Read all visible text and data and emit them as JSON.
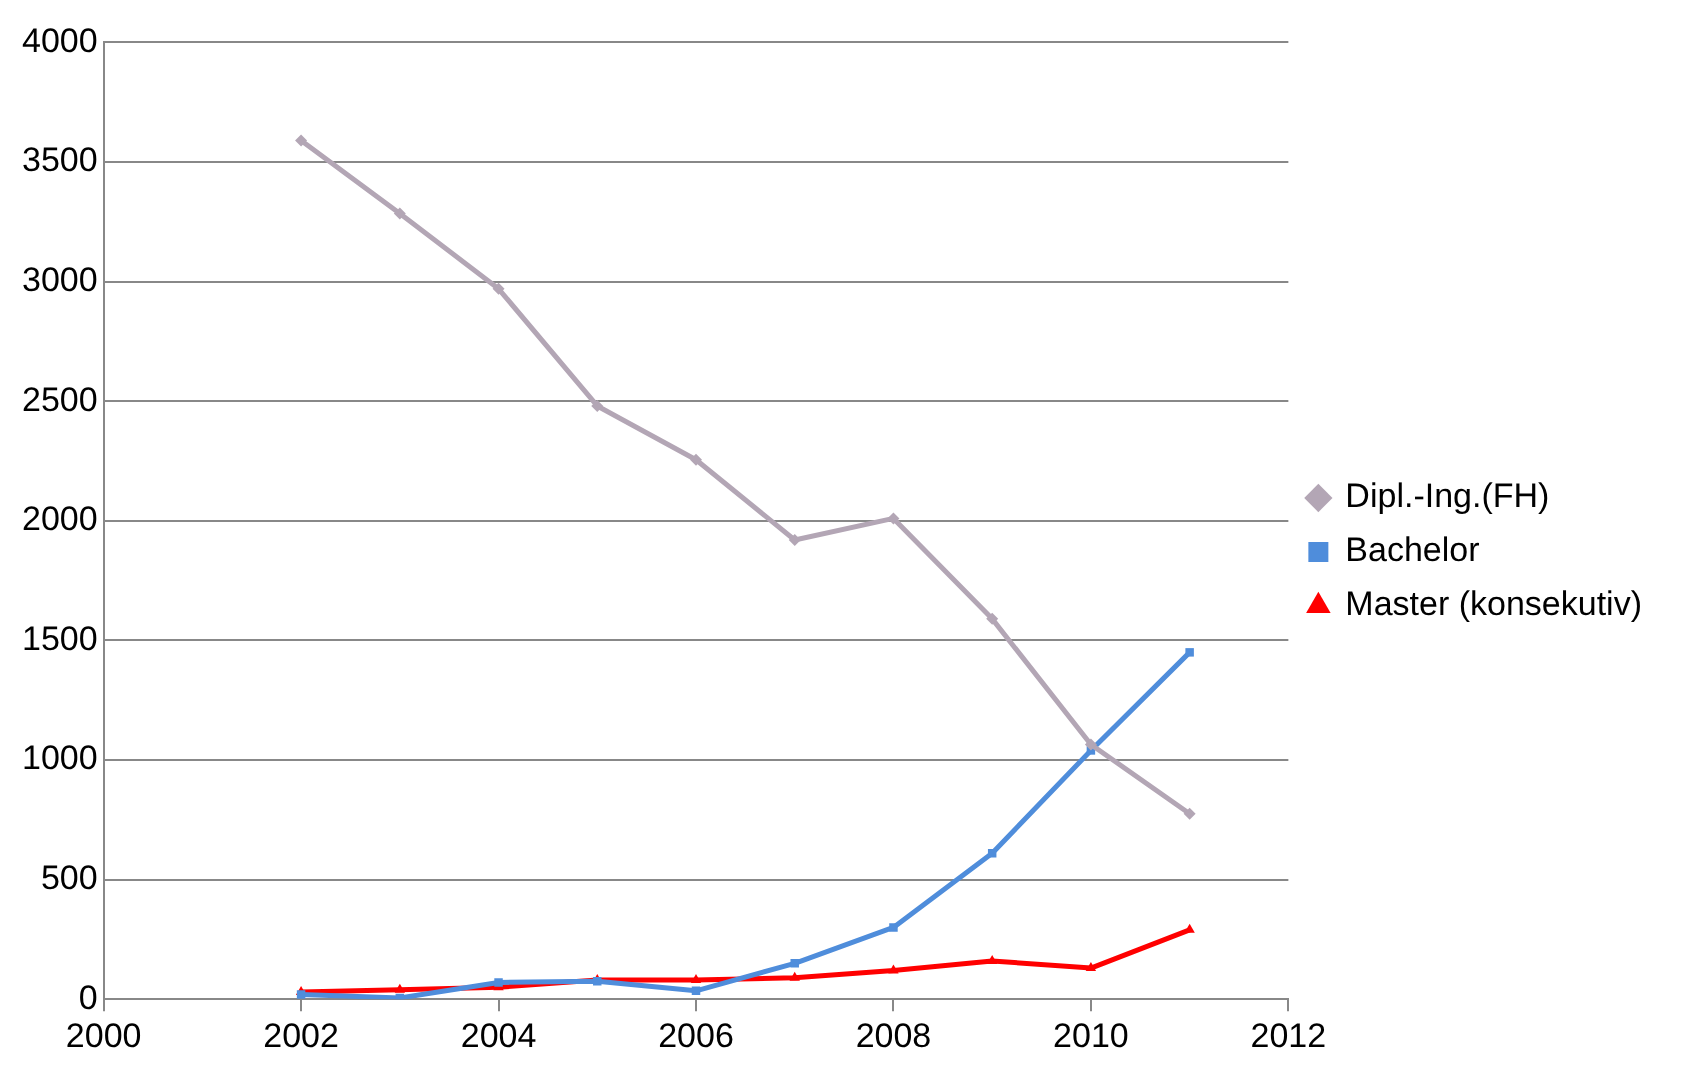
{
  "chart_data": {
    "type": "line",
    "x": [
      2002,
      2003,
      2004,
      2005,
      2006,
      2007,
      2008,
      2009,
      2010,
      2011
    ],
    "series": [
      {
        "name": "Dipl.-Ing.(FH)",
        "color": "#b3a6b5",
        "marker": "diamond",
        "values": [
          3590,
          3285,
          2970,
          2480,
          2255,
          1920,
          2010,
          1590,
          1065,
          775
        ]
      },
      {
        "name": "Bachelor",
        "color": "#4f8ddb",
        "marker": "square",
        "values": [
          20,
          5,
          70,
          75,
          35,
          150,
          300,
          610,
          1040,
          1450
        ]
      },
      {
        "name": "Master (konsekutiv)",
        "color": "#ff0000",
        "marker": "triangle",
        "values": [
          30,
          40,
          50,
          80,
          80,
          90,
          120,
          160,
          130,
          290
        ]
      }
    ],
    "xlim": [
      2000,
      2012
    ],
    "xticks": [
      2000,
      2002,
      2004,
      2006,
      2008,
      2010,
      2012
    ],
    "ylim": [
      0,
      4000
    ],
    "yticks": [
      0,
      500,
      1000,
      1500,
      2000,
      2500,
      3000,
      3500,
      4000
    ],
    "grid": "y",
    "legend": "right"
  }
}
